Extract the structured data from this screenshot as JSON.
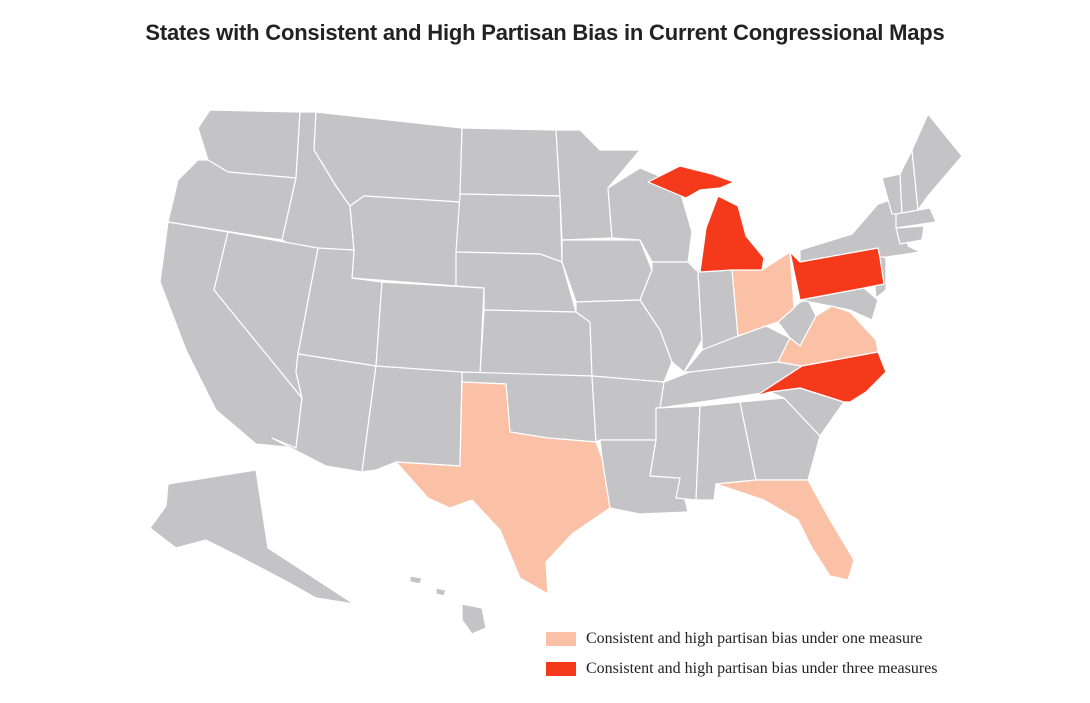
{
  "title": "States with Consistent and High Partisan Bias in Current Congressional Maps",
  "colors": {
    "default_state": "#c4c4c6",
    "one_measure": "#fbc1a7",
    "three_measures": "#f53a1c",
    "border": "#ffffff"
  },
  "legend": {
    "one_measure_label": "Consistent and high partisan bias under one measure",
    "three_measures_label": "Consistent and high partisan bias under three measures"
  },
  "states_one_measure": [
    "Texas",
    "Ohio",
    "Virginia",
    "Florida"
  ],
  "states_three_measures": [
    "Michigan",
    "Pennsylvania",
    "North Carolina"
  ]
}
